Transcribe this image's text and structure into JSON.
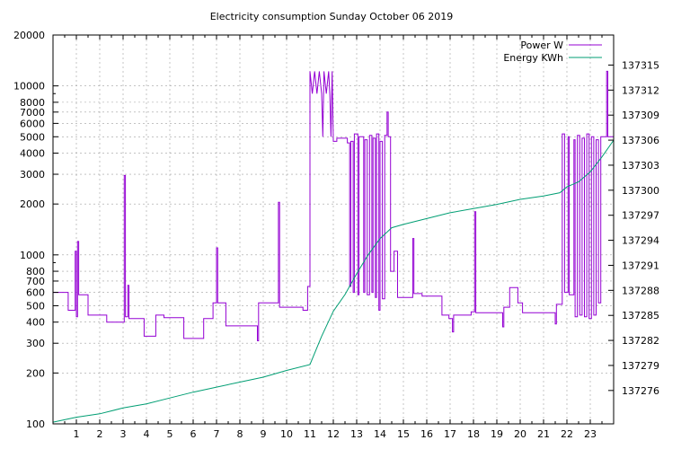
{
  "chart_data": {
    "type": "line",
    "title": "Electricity consumption Sunday October 06 2019",
    "x_range": [
      0,
      24
    ],
    "x_ticks": [
      1,
      2,
      3,
      4,
      5,
      6,
      7,
      8,
      9,
      10,
      11,
      12,
      13,
      14,
      15,
      16,
      17,
      18,
      19,
      20,
      21,
      22,
      23
    ],
    "y_left": {
      "scale": "log",
      "range": [
        100,
        20000
      ],
      "ticks": [
        100,
        200,
        300,
        400,
        500,
        600,
        700,
        800,
        1000,
        2000,
        3000,
        4000,
        5000,
        6000,
        7000,
        8000,
        10000,
        20000
      ]
    },
    "y_right": {
      "scale": "linear",
      "range": [
        137272.0,
        137318.6
      ],
      "ticks": [
        137276,
        137279,
        137282,
        137285,
        137288,
        137291,
        137294,
        137297,
        137300,
        137303,
        137306,
        137309,
        137312,
        137315
      ]
    },
    "grid": true,
    "legend_position": "top-right",
    "colors": {
      "power": "#9400d3",
      "energy": "#009e73"
    },
    "series": [
      {
        "name": "Power W",
        "axis": "left",
        "points": [
          [
            0,
            600
          ],
          [
            0.65,
            600
          ],
          [
            0.65,
            470
          ],
          [
            0.95,
            470
          ],
          [
            0.95,
            1050
          ],
          [
            1.0,
            1050
          ],
          [
            1.0,
            430
          ],
          [
            1.05,
            430
          ],
          [
            1.05,
            1200
          ],
          [
            1.1,
            1200
          ],
          [
            1.1,
            580
          ],
          [
            1.5,
            580
          ],
          [
            1.5,
            440
          ],
          [
            2.3,
            440
          ],
          [
            2.3,
            400
          ],
          [
            3.05,
            400
          ],
          [
            3.05,
            2950
          ],
          [
            3.1,
            2950
          ],
          [
            3.1,
            430
          ],
          [
            3.2,
            430
          ],
          [
            3.2,
            660
          ],
          [
            3.25,
            660
          ],
          [
            3.25,
            420
          ],
          [
            3.9,
            420
          ],
          [
            3.9,
            330
          ],
          [
            4.4,
            330
          ],
          [
            4.4,
            440
          ],
          [
            4.75,
            440
          ],
          [
            4.75,
            425
          ],
          [
            5.6,
            425
          ],
          [
            5.6,
            320
          ],
          [
            6.45,
            320
          ],
          [
            6.45,
            420
          ],
          [
            6.85,
            420
          ],
          [
            6.85,
            520
          ],
          [
            7.0,
            520
          ],
          [
            7.0,
            1100
          ],
          [
            7.05,
            1100
          ],
          [
            7.05,
            520
          ],
          [
            7.4,
            520
          ],
          [
            7.4,
            380
          ],
          [
            8.75,
            380
          ],
          [
            8.75,
            310
          ],
          [
            8.8,
            310
          ],
          [
            8.8,
            520
          ],
          [
            9.65,
            520
          ],
          [
            9.65,
            2050
          ],
          [
            9.7,
            2050
          ],
          [
            9.7,
            490
          ],
          [
            10.7,
            490
          ],
          [
            10.7,
            470
          ],
          [
            10.9,
            470
          ],
          [
            10.9,
            650
          ],
          [
            11.0,
            650
          ],
          [
            11.0,
            12200
          ],
          [
            11.1,
            9000
          ],
          [
            11.2,
            12200
          ],
          [
            11.3,
            9000
          ],
          [
            11.4,
            12200
          ],
          [
            11.5,
            9000
          ],
          [
            11.55,
            5000
          ],
          [
            11.6,
            12200
          ],
          [
            11.7,
            9000
          ],
          [
            11.8,
            12200
          ],
          [
            11.85,
            9000
          ],
          [
            11.9,
            5000
          ],
          [
            11.95,
            12200
          ],
          [
            12.0,
            4700
          ],
          [
            12.15,
            4700
          ],
          [
            12.15,
            4900
          ],
          [
            12.6,
            4900
          ],
          [
            12.6,
            4600
          ],
          [
            12.7,
            4600
          ],
          [
            12.7,
            650
          ],
          [
            12.75,
            650
          ],
          [
            12.75,
            4700
          ],
          [
            12.85,
            4700
          ],
          [
            12.85,
            600
          ],
          [
            12.9,
            600
          ],
          [
            12.9,
            5200
          ],
          [
            13.05,
            5200
          ],
          [
            13.05,
            580
          ],
          [
            13.1,
            580
          ],
          [
            13.1,
            5000
          ],
          [
            13.3,
            5000
          ],
          [
            13.3,
            600
          ],
          [
            13.35,
            600
          ],
          [
            13.35,
            4800
          ],
          [
            13.45,
            4800
          ],
          [
            13.45,
            580
          ],
          [
            13.55,
            580
          ],
          [
            13.55,
            5100
          ],
          [
            13.65,
            5100
          ],
          [
            13.65,
            600
          ],
          [
            13.7,
            600
          ],
          [
            13.7,
            4900
          ],
          [
            13.8,
            4900
          ],
          [
            13.8,
            560
          ],
          [
            13.85,
            560
          ],
          [
            13.85,
            5200
          ],
          [
            13.95,
            5200
          ],
          [
            13.95,
            470
          ],
          [
            14.0,
            470
          ],
          [
            14.0,
            4700
          ],
          [
            14.1,
            4700
          ],
          [
            14.1,
            550
          ],
          [
            14.2,
            550
          ],
          [
            14.2,
            5100
          ],
          [
            14.3,
            5100
          ],
          [
            14.3,
            7000
          ],
          [
            14.35,
            7000
          ],
          [
            14.35,
            5000
          ],
          [
            14.45,
            5000
          ],
          [
            14.45,
            800
          ],
          [
            14.6,
            800
          ],
          [
            14.6,
            1050
          ],
          [
            14.75,
            1050
          ],
          [
            14.75,
            560
          ],
          [
            15.4,
            560
          ],
          [
            15.4,
            1250
          ],
          [
            15.45,
            1250
          ],
          [
            15.45,
            590
          ],
          [
            15.8,
            590
          ],
          [
            15.8,
            570
          ],
          [
            16.65,
            570
          ],
          [
            16.65,
            440
          ],
          [
            16.95,
            440
          ],
          [
            16.95,
            420
          ],
          [
            17.1,
            420
          ],
          [
            17.1,
            350
          ],
          [
            17.15,
            350
          ],
          [
            17.15,
            440
          ],
          [
            17.9,
            440
          ],
          [
            17.9,
            460
          ],
          [
            18.05,
            460
          ],
          [
            18.05,
            1800
          ],
          [
            18.1,
            1800
          ],
          [
            18.1,
            455
          ],
          [
            19.25,
            455
          ],
          [
            19.25,
            375
          ],
          [
            19.3,
            375
          ],
          [
            19.3,
            490
          ],
          [
            19.55,
            490
          ],
          [
            19.55,
            640
          ],
          [
            19.9,
            640
          ],
          [
            19.9,
            520
          ],
          [
            20.1,
            520
          ],
          [
            20.1,
            455
          ],
          [
            21.5,
            455
          ],
          [
            21.5,
            390
          ],
          [
            21.55,
            390
          ],
          [
            21.55,
            510
          ],
          [
            21.8,
            510
          ],
          [
            21.8,
            5200
          ],
          [
            21.9,
            5200
          ],
          [
            21.9,
            600
          ],
          [
            22.05,
            600
          ],
          [
            22.05,
            5000
          ],
          [
            22.1,
            5000
          ],
          [
            22.1,
            580
          ],
          [
            22.3,
            580
          ],
          [
            22.3,
            4800
          ],
          [
            22.35,
            4800
          ],
          [
            22.35,
            430
          ],
          [
            22.45,
            430
          ],
          [
            22.45,
            5100
          ],
          [
            22.55,
            5100
          ],
          [
            22.55,
            440
          ],
          [
            22.65,
            440
          ],
          [
            22.65,
            4900
          ],
          [
            22.75,
            4900
          ],
          [
            22.75,
            430
          ],
          [
            22.85,
            430
          ],
          [
            22.85,
            5200
          ],
          [
            22.95,
            5200
          ],
          [
            22.95,
            420
          ],
          [
            23.05,
            420
          ],
          [
            23.05,
            5000
          ],
          [
            23.15,
            5000
          ],
          [
            23.15,
            440
          ],
          [
            23.25,
            440
          ],
          [
            23.25,
            4800
          ],
          [
            23.35,
            4800
          ],
          [
            23.35,
            520
          ],
          [
            23.45,
            520
          ],
          [
            23.45,
            5000
          ],
          [
            23.7,
            5000
          ],
          [
            23.7,
            12200
          ],
          [
            23.75,
            12200
          ],
          [
            23.75,
            5000
          ],
          [
            24,
            5000
          ]
        ]
      },
      {
        "name": "Energy KWh",
        "axis": "right",
        "points": [
          [
            0,
            137272.2
          ],
          [
            1,
            137272.8
          ],
          [
            2,
            137273.2
          ],
          [
            3,
            137273.9
          ],
          [
            4,
            137274.4
          ],
          [
            5,
            137275.1
          ],
          [
            6,
            137275.8
          ],
          [
            7,
            137276.4
          ],
          [
            8,
            137277.0
          ],
          [
            9,
            137277.6
          ],
          [
            10,
            137278.4
          ],
          [
            11,
            137279.1
          ],
          [
            11.5,
            137282.5
          ],
          [
            12,
            137285.5
          ],
          [
            12.5,
            137287.5
          ],
          [
            13,
            137290.0
          ],
          [
            13.5,
            137292.3
          ],
          [
            14,
            137294.2
          ],
          [
            14.5,
            137295.5
          ],
          [
            15,
            137295.9
          ],
          [
            16,
            137296.6
          ],
          [
            17,
            137297.3
          ],
          [
            18,
            137297.8
          ],
          [
            19,
            137298.3
          ],
          [
            20,
            137298.9
          ],
          [
            21,
            137299.3
          ],
          [
            21.7,
            137299.7
          ],
          [
            22,
            137300.4
          ],
          [
            22.5,
            137301.0
          ],
          [
            23,
            137302.2
          ],
          [
            23.5,
            137304.0
          ],
          [
            24,
            137306.0
          ]
        ]
      }
    ]
  }
}
